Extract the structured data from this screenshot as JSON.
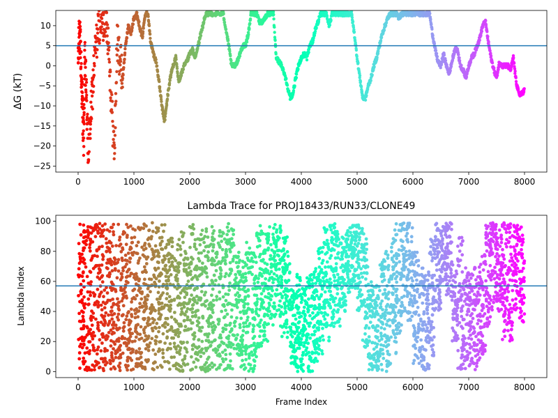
{
  "chart_data": [
    {
      "type": "scatter",
      "title": "",
      "xlabel": "",
      "ylabel": "ΔG (kT)",
      "xlim": [
        -400,
        8400
      ],
      "ylim": [
        -26.5,
        13.8
      ],
      "xticks": [
        0,
        1000,
        2000,
        3000,
        4000,
        5000,
        6000,
        7000,
        8000
      ],
      "yticks": [
        -25,
        -20,
        -15,
        -10,
        -5,
        0,
        5,
        10
      ],
      "hline": 5.0,
      "hline_color": "#1f77b4",
      "colormap": "rainbow (reversed along frame index: red at 0, violet at 8000)",
      "grid": false,
      "series": [
        {
          "x": [
            0,
            20,
            40,
            60,
            80,
            100,
            120,
            150,
            180,
            220,
            260,
            300,
            350,
            400,
            450,
            500,
            550,
            600,
            650,
            700,
            750,
            800,
            850,
            900,
            950,
            1000,
            1050,
            1100,
            1150,
            1200,
            1250,
            1300,
            1350,
            1400,
            1450,
            1500,
            1550,
            1600,
            1650,
            1700,
            1750,
            1800,
            1850,
            1900,
            1950,
            2000,
            2050,
            2100,
            2150,
            2200,
            2250,
            2300,
            2350,
            2400,
            2500,
            2600,
            2650,
            2700,
            2750,
            2800,
            2850,
            2900,
            2950,
            3000,
            3050,
            3100,
            3150,
            3200,
            3250,
            3300,
            3350,
            3400,
            3450,
            3500,
            3550,
            3600,
            3650,
            3700,
            3750,
            3800,
            3850,
            3900,
            3950,
            4000,
            4050,
            4100,
            4150,
            4200,
            4250,
            4300,
            4350,
            4400,
            4450,
            4500,
            4550,
            4600,
            4650,
            4700,
            4750,
            4800,
            4850,
            4900,
            4950,
            5000,
            5050,
            5100,
            5150,
            5200,
            5250,
            5300,
            5350,
            5400,
            5450,
            5500,
            5550,
            5600,
            5650,
            5700,
            5750,
            5800,
            5850,
            5900,
            5950,
            6000,
            6050,
            6100,
            6150,
            6200,
            6250,
            6300,
            6350,
            6400,
            6450,
            6500,
            6550,
            6600,
            6650,
            6700,
            6750,
            6800,
            6850,
            6900,
            6950,
            7000,
            7050,
            7100,
            7150,
            7200,
            7250,
            7300,
            7350,
            7400,
            7450,
            7500,
            7550,
            7600,
            7650,
            7700,
            7750,
            7800,
            7850,
            7900,
            7950,
            8000
          ],
          "y": [
            0,
            9.5,
            5,
            -3,
            -11,
            -19,
            2,
            -8,
            -22,
            -14,
            -6,
            3,
            8,
            12,
            10,
            13,
            5,
            -10,
            -22,
            6,
            2,
            -3,
            5,
            10,
            8,
            12,
            13,
            10,
            7,
            13,
            13,
            6,
            3,
            1,
            -4,
            -10,
            -14,
            -8,
            -3,
            0,
            2,
            -4,
            -2,
            0,
            1,
            3,
            4,
            2,
            5,
            8,
            11,
            13,
            13,
            13,
            13,
            13,
            9,
            5,
            0,
            0,
            1,
            3,
            5,
            5,
            8,
            13,
            13,
            13,
            11,
            11,
            12,
            13,
            13,
            13,
            2,
            1,
            0,
            -2,
            -5,
            -8,
            -7,
            -3,
            0,
            2,
            3,
            2,
            5,
            6,
            9,
            11,
            13,
            13,
            13,
            10,
            13,
            13,
            13,
            13,
            13,
            13,
            13,
            13,
            8,
            2,
            -3,
            -8,
            -8,
            -5,
            -3,
            0,
            2,
            5,
            8,
            10,
            12,
            13,
            13,
            13,
            12,
            13,
            13,
            13,
            13,
            13,
            13,
            13,
            13,
            13,
            13,
            13,
            8,
            4,
            1,
            0,
            3,
            0,
            -2,
            1,
            4,
            4,
            0,
            -1,
            -3,
            0,
            2,
            3,
            5,
            7,
            10,
            11,
            6,
            2,
            -1,
            -3,
            1,
            0,
            0,
            0,
            -1,
            2,
            -4,
            -7,
            -7,
            -6
          ]
        }
      ]
    },
    {
      "type": "scatter",
      "title": "Lambda Trace for PROJ18433/RUN33/CLONE49",
      "xlabel": "Frame Index",
      "ylabel": "Lambda Index",
      "xlim": [
        -400,
        8400
      ],
      "ylim": [
        -4,
        104
      ],
      "xticks": [
        0,
        1000,
        2000,
        3000,
        4000,
        5000,
        6000,
        7000,
        8000
      ],
      "yticks": [
        0,
        20,
        40,
        60,
        80,
        100
      ],
      "hline": 57,
      "hline_color": "#1f77b4",
      "colormap": "rainbow (reversed along frame index: red at 0, violet at 8000)",
      "grid": false,
      "series": [
        {
          "points": "dense scatter of per-frame lambda indices 0-99; full spread 0-99 for frames 0-1500, banded excursions later (e.g. 35-99 near 3500, 0-60 near 4000, 40-99 near 5000, 0-60 near 5400, 50-99 near 5800, 0-70 near 6100, 40-99 near 6400, 0-70 near 7100, 40-99 near 7700)",
          "x_centers": [
            0,
            100,
            200,
            300,
            400,
            500,
            600,
            700,
            800,
            900,
            1000,
            1100,
            1200,
            1300,
            1400,
            1500,
            1600,
            1700,
            1800,
            1900,
            2000,
            2100,
            2200,
            2300,
            2400,
            2500,
            2600,
            2700,
            2800,
            2900,
            3000,
            3100,
            3200,
            3300,
            3400,
            3500,
            3600,
            3700,
            3800,
            3900,
            4000,
            4100,
            4200,
            4300,
            4400,
            4500,
            4600,
            4700,
            4800,
            4900,
            5000,
            5100,
            5200,
            5300,
            5400,
            5500,
            5600,
            5700,
            5800,
            5900,
            6000,
            6100,
            6200,
            6300,
            6400,
            6500,
            6600,
            6700,
            6800,
            6900,
            7000,
            7100,
            7200,
            7300,
            7400,
            7500,
            7600,
            7700,
            7800,
            7900
          ],
          "y_min": [
            0,
            0,
            0,
            0,
            0,
            0,
            0,
            0,
            0,
            0,
            0,
            0,
            0,
            0,
            0,
            0,
            0,
            0,
            0,
            0,
            0,
            0,
            0,
            0,
            0,
            0,
            0,
            0,
            10,
            0,
            0,
            0,
            10,
            20,
            30,
            30,
            20,
            20,
            5,
            0,
            0,
            0,
            5,
            10,
            20,
            30,
            30,
            40,
            50,
            55,
            40,
            15,
            0,
            0,
            0,
            0,
            10,
            25,
            40,
            30,
            5,
            0,
            0,
            10,
            40,
            60,
            50,
            20,
            0,
            0,
            0,
            0,
            10,
            30,
            40,
            40,
            20,
            20,
            40,
            30
          ],
          "y_max": [
            99,
            99,
            99,
            99,
            99,
            99,
            99,
            99,
            99,
            99,
            99,
            99,
            99,
            99,
            99,
            99,
            90,
            85,
            95,
            80,
            98,
            90,
            95,
            90,
            99,
            95,
            99,
            95,
            80,
            75,
            90,
            80,
            99,
            99,
            99,
            99,
            99,
            90,
            60,
            65,
            60,
            65,
            70,
            85,
            99,
            99,
            95,
            90,
            99,
            99,
            99,
            95,
            60,
            60,
            75,
            80,
            95,
            99,
            99,
            99,
            80,
            70,
            70,
            90,
            99,
            99,
            99,
            75,
            90,
            70,
            65,
            70,
            80,
            99,
            99,
            95,
            99,
            99,
            99,
            99
          ]
        }
      ]
    }
  ]
}
